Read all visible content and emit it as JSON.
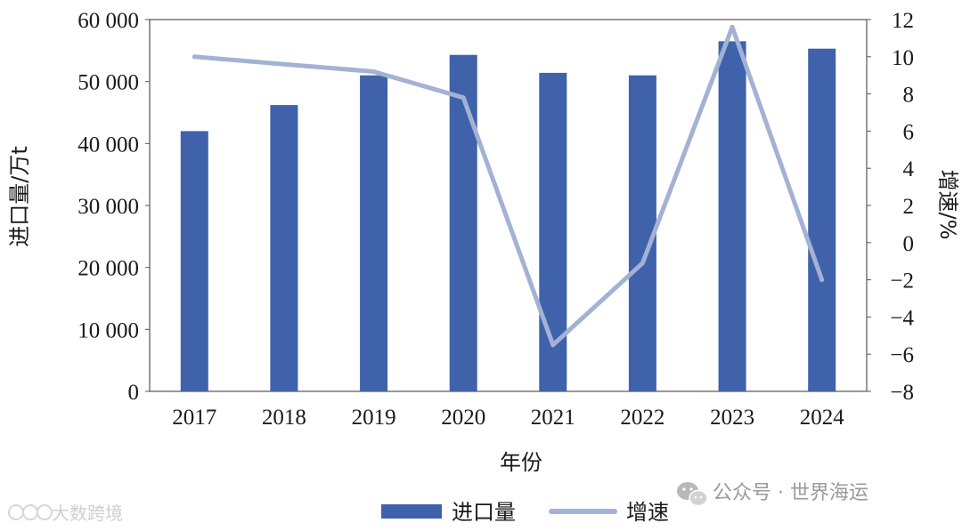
{
  "chart_data": {
    "type": "bar",
    "categories": [
      "2017",
      "2018",
      "2019",
      "2020",
      "2021",
      "2022",
      "2023",
      "2024"
    ],
    "series": [
      {
        "name": "进口量",
        "type": "bar",
        "axis": "left",
        "color": "#3f62ab",
        "values": [
          42000,
          46200,
          51000,
          54300,
          51400,
          51000,
          56500,
          55300
        ]
      },
      {
        "name": "增速",
        "type": "line",
        "axis": "right",
        "color": "#a3b2d4",
        "values": [
          10.0,
          9.6,
          9.2,
          7.8,
          -5.5,
          -1.1,
          11.6,
          -2.0
        ]
      }
    ],
    "xlabel": "年份",
    "ylabel_left": "进口量/万t",
    "ylabel_right": "增速/%",
    "ylim_left": [
      0,
      60000
    ],
    "ylim_right": [
      -8,
      12
    ],
    "yticks_left": [
      "0",
      "10 000",
      "20 000",
      "30 000",
      "40 000",
      "50 000",
      "60 000"
    ],
    "yticks_right": [
      "−8",
      "−6",
      "−4",
      "−2",
      "0",
      "2",
      "4",
      "6",
      "8",
      "10",
      "12"
    ],
    "legend": [
      {
        "label": "进口量",
        "kind": "bar"
      },
      {
        "label": "增速",
        "kind": "line"
      }
    ],
    "legend_position": "bottom",
    "grid": false
  },
  "watermarks": {
    "right": "公众号 · 世界海运",
    "right_icon": "wechat-icon",
    "left": "大数跨境"
  }
}
